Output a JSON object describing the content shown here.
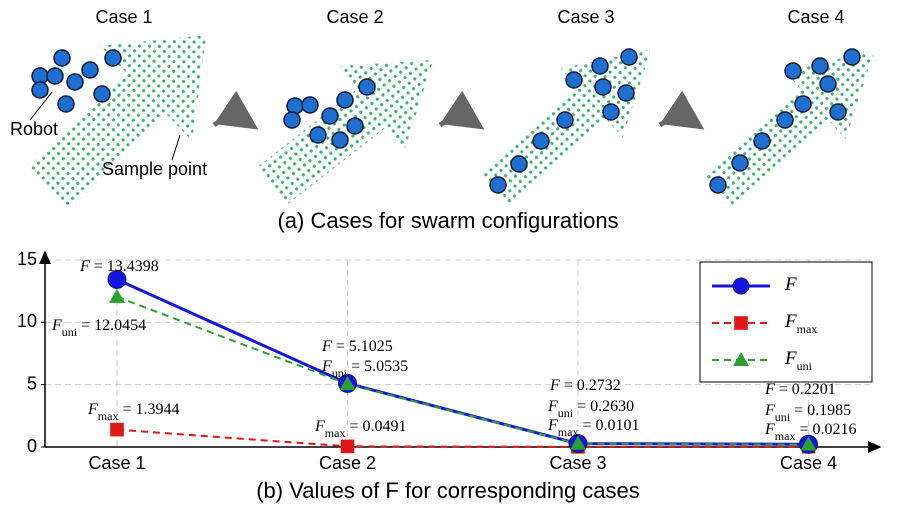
{
  "diagram": {
    "case_titles": [
      "Case 1",
      "Case 2",
      "Case 3",
      "Case 4"
    ],
    "robot_label": "Robot",
    "sample_label": "Sample point",
    "caption": "(a) Cases for swarm configurations"
  },
  "chart_data": {
    "type": "line",
    "caption": "(b) Values of F for corresponding cases",
    "categories": [
      "Case 1",
      "Case 2",
      "Case 3",
      "Case 4"
    ],
    "ylim": [
      0,
      15
    ],
    "yticks": [
      0,
      5,
      10,
      15
    ],
    "grid": true,
    "legend": "top-right",
    "series": [
      {
        "name": "F",
        "color": "#1515e0",
        "values": [
          13.4398,
          5.1025,
          0.2732,
          0.2201
        ],
        "value_labels": [
          " = 13.4398",
          " = 5.1025",
          " = 0.2732",
          " = 0.2201"
        ]
      },
      {
        "name": "F",
        "subscript": "max",
        "color": "#e01515",
        "values": [
          1.3944,
          0.0491,
          0.0101,
          0.0216
        ],
        "value_labels": [
          " = 1.3944",
          " = 0.0491",
          " = 0.0101",
          " = 0.0216"
        ]
      },
      {
        "name": "F",
        "subscript": "uni",
        "color": "#2ca02c",
        "values": [
          12.0454,
          5.0535,
          0.263,
          0.1985
        ],
        "value_labels": [
          " = 12.0454",
          " = 5.0535",
          " = 0.2630",
          " = 0.1985"
        ]
      }
    ]
  }
}
